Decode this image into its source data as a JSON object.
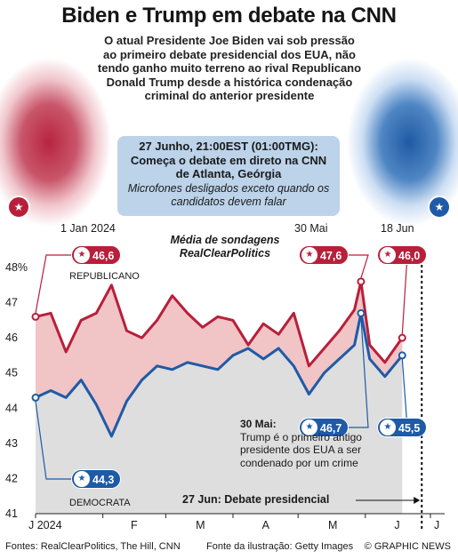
{
  "header": {
    "title": "Biden e Trump em debate na CNN",
    "intro": "O atual Presidente Joe Biden vai sob pressão ao primeiro debate presidencial dos EUA, não tendo ganho muito terreno ao rival Republicano Donald Trump desde a histórica condenação criminal do anterior presidente",
    "event_title": "27 Junho, 21:00EST (01:00TMG): Começa o debate em direto na CNN de Atlanta, Geórgia",
    "event_sub": "Microfones desligados exceto quando os candidatos devem falar"
  },
  "icons": {
    "republican": "elephant-icon",
    "democrat": "donkey-icon"
  },
  "colors": {
    "republican": "#b81f3a",
    "democrat": "#1e5aa8",
    "rep_fill": "#f1c4c6",
    "dem_fill": "#dedede",
    "event_box": "#bcd3ea"
  },
  "chart_data": {
    "type": "line",
    "title": "Média de sondagens RealClearPolitics",
    "y_unit": "%",
    "ylim": [
      41,
      48
    ],
    "yticks": [
      "48%",
      "47",
      "46",
      "45",
      "44",
      "43",
      "42",
      "41"
    ],
    "xtick_labels": [
      "J 2024",
      "F",
      "M",
      "A",
      "M",
      "J",
      "J"
    ],
    "grid": false,
    "x": [
      "2024-01-01",
      "2024-01-08",
      "2024-01-15",
      "2024-01-22",
      "2024-01-29",
      "2024-02-05",
      "2024-02-12",
      "2024-02-19",
      "2024-02-26",
      "2024-03-04",
      "2024-03-11",
      "2024-03-18",
      "2024-03-25",
      "2024-04-01",
      "2024-04-08",
      "2024-04-15",
      "2024-04-22",
      "2024-04-29",
      "2024-05-06",
      "2024-05-13",
      "2024-05-20",
      "2024-05-27",
      "2024-05-30",
      "2024-06-03",
      "2024-06-10",
      "2024-06-18"
    ],
    "series": [
      {
        "name": "REPUBLICANO",
        "values": [
          46.6,
          46.7,
          45.6,
          46.5,
          46.7,
          47.5,
          46.2,
          46.0,
          46.5,
          47.2,
          46.7,
          46.3,
          46.6,
          46.5,
          45.8,
          46.4,
          46.1,
          46.7,
          45.2,
          45.7,
          46.2,
          46.8,
          47.6,
          45.8,
          45.3,
          46.0
        ]
      },
      {
        "name": "DEMOCRATA",
        "values": [
          44.3,
          44.5,
          44.3,
          44.8,
          44.1,
          43.2,
          44.2,
          44.8,
          45.2,
          45.1,
          45.3,
          45.2,
          45.1,
          45.5,
          45.7,
          45.4,
          45.7,
          45.2,
          44.4,
          45.0,
          45.4,
          45.8,
          46.7,
          45.4,
          44.9,
          45.5
        ]
      }
    ],
    "date_labels": [
      "1 Jan 2024",
      "30 Mai",
      "18 Jun"
    ],
    "callouts": {
      "rep_start": "46,6",
      "rep_may30": "47,6",
      "rep_jun18": "46,0",
      "dem_start": "44,3",
      "dem_may30": "46,7",
      "dem_jun18": "45,5"
    },
    "annotations": {
      "may30_date": "30 Mai:",
      "may30_text": "Trump é o primeiro antigo presidente dos EUA a ser condenado por um crime",
      "debate": "27 Jun: Debate presidencial"
    },
    "debate_date": "2024-06-27"
  },
  "footer": {
    "sources": "Fontes: RealClearPolitics, The Hill, CNN",
    "illustration": "Fonte da ilustração: Getty Images",
    "brand": "© GRAPHIC NEWS"
  }
}
